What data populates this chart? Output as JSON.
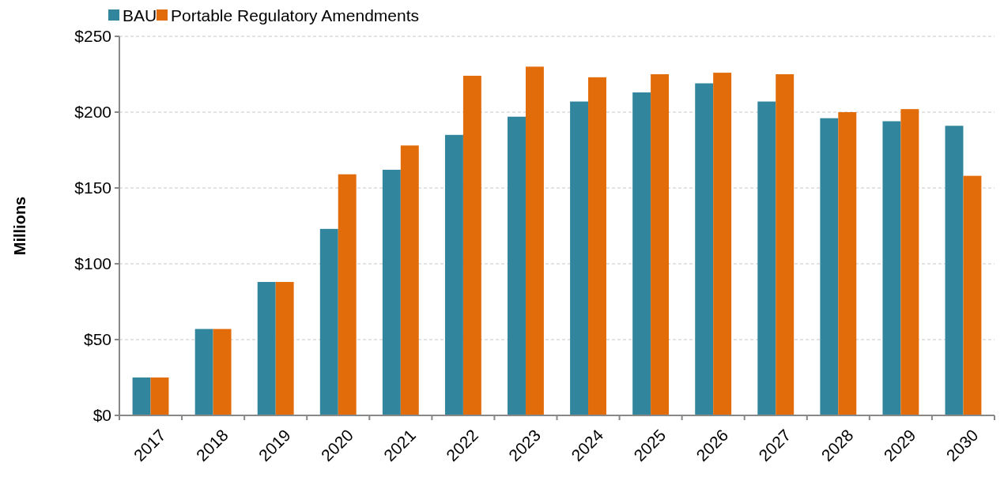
{
  "chart_data": {
    "type": "bar",
    "ylabel": "Millions",
    "categories": [
      "2017",
      "2018",
      "2019",
      "2020",
      "2021",
      "2022",
      "2023",
      "2024",
      "2025",
      "2026",
      "2027",
      "2028",
      "2029",
      "2030"
    ],
    "series": [
      {
        "name": "BAU",
        "color": "#31859c",
        "values": [
          25,
          57,
          88,
          123,
          162,
          185,
          197,
          207,
          213,
          219,
          207,
          196,
          194,
          191
        ]
      },
      {
        "name": "Portable Regulatory Amendments",
        "color": "#e36c0a",
        "values": [
          25,
          57,
          88,
          159,
          178,
          224,
          230,
          223,
          225,
          226,
          225,
          200,
          202,
          158
        ]
      }
    ],
    "ylim": [
      0,
      250
    ],
    "yticks": [
      {
        "value": 0,
        "label": "$0"
      },
      {
        "value": 50,
        "label": "$50"
      },
      {
        "value": 100,
        "label": "$100"
      },
      {
        "value": 150,
        "label": "$150"
      },
      {
        "value": 200,
        "label": "$200"
      },
      {
        "value": 250,
        "label": "$250"
      }
    ],
    "grid": "y",
    "legend": "top left"
  }
}
